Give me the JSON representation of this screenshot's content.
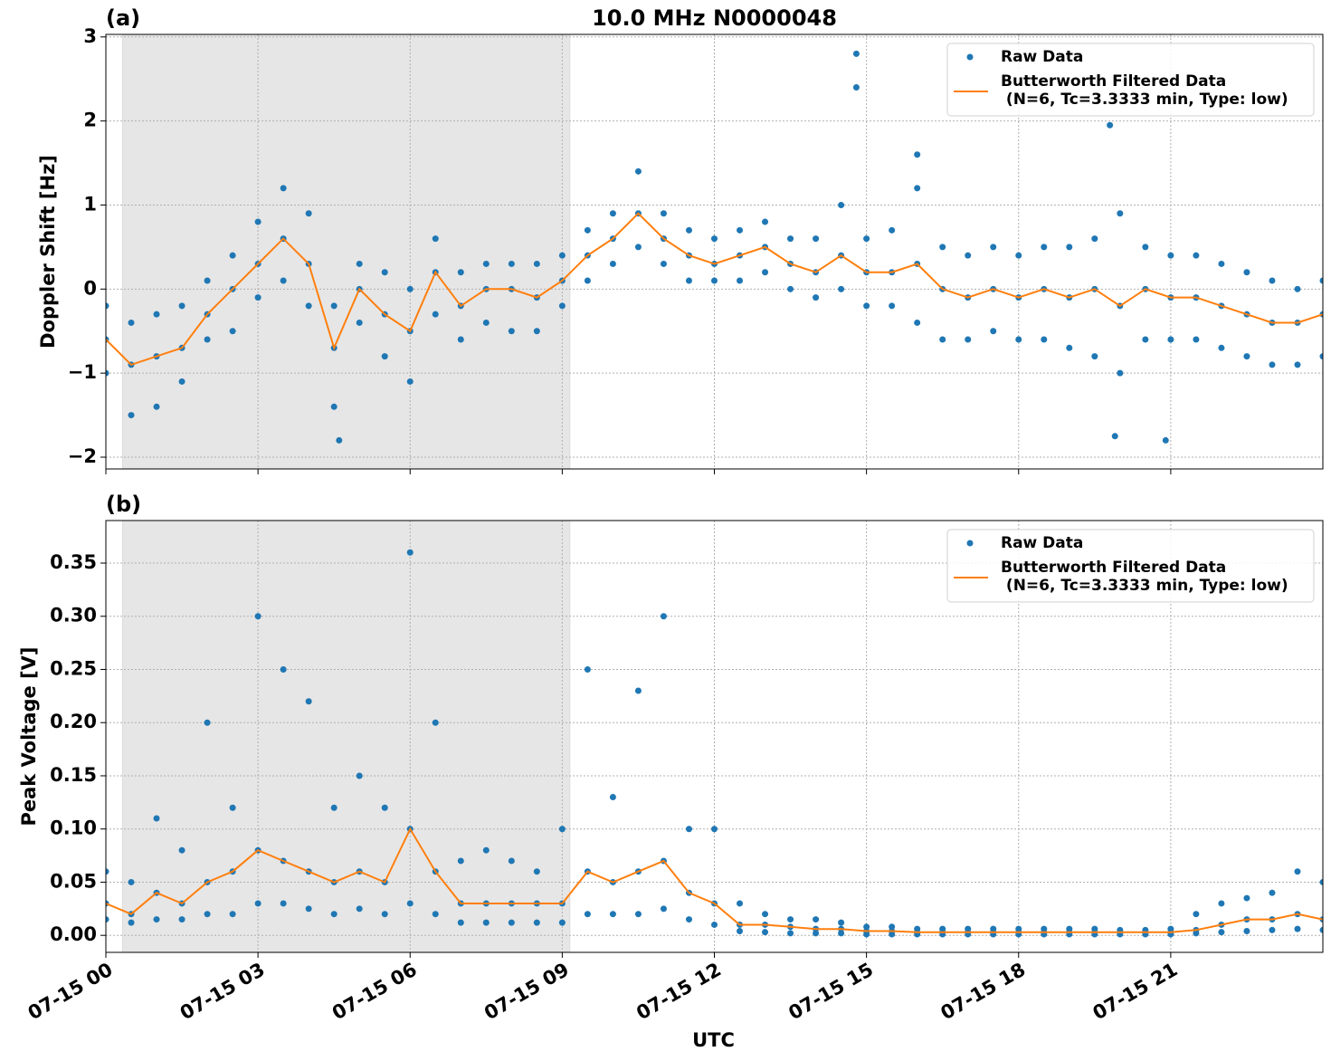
{
  "chart_data": [
    {
      "type": "scatter",
      "panel_label": "(a)",
      "title": "10.0 MHz N0000048",
      "ylabel": "Doppler Shift [Hz]",
      "xlim": [
        0,
        24
      ],
      "xticks": [
        0,
        3,
        6,
        9,
        12,
        15,
        18,
        21
      ],
      "ylim": [
        -2.14,
        3.03
      ],
      "yticks": [
        {
          "value": -2,
          "label": "−2"
        },
        {
          "value": -1,
          "label": "−1"
        },
        0,
        1,
        2,
        3
      ],
      "grid": true,
      "shaded_span": [
        0.33,
        9.15
      ],
      "legend": "upper right",
      "series": [
        {
          "name": "Raw Data",
          "color": "#1f77b4",
          "x": [
            0,
            0,
            0,
            0.5,
            0.5,
            0.5,
            1,
            1,
            1,
            1.5,
            1.5,
            1.5,
            2,
            2,
            2,
            2.5,
            2.5,
            2.5,
            3,
            3,
            3,
            3.5,
            3.5,
            3.5,
            4,
            4,
            4,
            4.5,
            4.5,
            4.5,
            5,
            5,
            5,
            5.5,
            5.5,
            5.5,
            6,
            6,
            6,
            6.5,
            6.5,
            6.5,
            7,
            7,
            7,
            7.5,
            7.5,
            7.5,
            8,
            8,
            8,
            8.5,
            8.5,
            8.5,
            9,
            9,
            9,
            9.5,
            9.5,
            9.5,
            10,
            10,
            10,
            10.5,
            10.5,
            10.5,
            11,
            11,
            11,
            11.5,
            11.5,
            11.5,
            12,
            12,
            12,
            12.5,
            12.5,
            12.5,
            13,
            13,
            13,
            13.5,
            13.5,
            13.5,
            14,
            14,
            14,
            14.5,
            14.5,
            14.5,
            15,
            15,
            15,
            15.5,
            15.5,
            15.5,
            16,
            16,
            16,
            16.5,
            16.5,
            16.5,
            17,
            17,
            17,
            17.5,
            17.5,
            17.5,
            18,
            18,
            18,
            18.5,
            18.5,
            18.5,
            19,
            19,
            19,
            19.5,
            19.5,
            19.5,
            20,
            20,
            20,
            20.5,
            20.5,
            20.5,
            21,
            21,
            21,
            21.5,
            21.5,
            21.5,
            22,
            22,
            22,
            22.5,
            22.5,
            22.5,
            23,
            23,
            23,
            23.5,
            23.5,
            23.5,
            24,
            24,
            24,
            14.8,
            14.8,
            19.8,
            4.6,
            19.9,
            16,
            20.9
          ],
          "values": [
            -0.2,
            -0.6,
            -1.0,
            -0.4,
            -0.9,
            -1.5,
            -0.3,
            -0.8,
            -1.4,
            -0.2,
            -0.7,
            -1.1,
            0.1,
            -0.3,
            -0.6,
            0.4,
            0.0,
            -0.5,
            0.8,
            0.3,
            -0.1,
            1.2,
            0.6,
            0.1,
            0.9,
            0.3,
            -0.2,
            -0.2,
            -0.7,
            -1.4,
            0.3,
            0.0,
            -0.4,
            0.2,
            -0.3,
            -0.8,
            0.0,
            -0.5,
            -1.1,
            0.6,
            0.2,
            -0.3,
            0.2,
            -0.2,
            -0.6,
            0.3,
            0.0,
            -0.4,
            0.3,
            0.0,
            -0.5,
            0.3,
            -0.1,
            -0.5,
            0.4,
            0.1,
            -0.2,
            0.7,
            0.4,
            0.1,
            0.9,
            0.6,
            0.3,
            1.4,
            0.9,
            0.5,
            0.9,
            0.6,
            0.3,
            0.7,
            0.4,
            0.1,
            0.6,
            0.3,
            0.1,
            0.7,
            0.4,
            0.1,
            0.8,
            0.5,
            0.2,
            0.6,
            0.3,
            0.0,
            0.6,
            0.2,
            -0.1,
            1.0,
            0.4,
            0.0,
            0.6,
            0.2,
            -0.2,
            0.7,
            0.2,
            -0.2,
            1.2,
            0.3,
            -0.4,
            0.5,
            0.0,
            -0.6,
            0.4,
            -0.1,
            -0.6,
            0.5,
            0.0,
            -0.5,
            0.4,
            -0.1,
            -0.6,
            0.5,
            0.0,
            -0.6,
            0.5,
            -0.1,
            -0.7,
            0.6,
            0.0,
            -0.8,
            0.9,
            -0.2,
            -1.0,
            0.5,
            0.0,
            -0.6,
            0.4,
            -0.1,
            -0.6,
            0.4,
            -0.1,
            -0.6,
            0.3,
            -0.2,
            -0.7,
            0.2,
            -0.3,
            -0.8,
            0.1,
            -0.4,
            -0.9,
            0.0,
            -0.4,
            -0.9,
            0.1,
            -0.3,
            -0.8,
            2.8,
            2.4,
            1.95,
            -1.8,
            -1.75,
            1.6,
            -1.8
          ]
        },
        {
          "name": "Butterworth Filtered Data\n(N=6, Tc=3.3333 min, Type: low)",
          "color": "#ff7f0e",
          "x": [
            0,
            0.5,
            1,
            1.5,
            2,
            2.5,
            3,
            3.5,
            4,
            4.5,
            5,
            5.5,
            6,
            6.5,
            7,
            7.5,
            8,
            8.5,
            9,
            9.5,
            10,
            10.5,
            11,
            11.5,
            12,
            12.5,
            13,
            13.5,
            14,
            14.5,
            15,
            15.5,
            16,
            16.5,
            17,
            17.5,
            18,
            18.5,
            19,
            19.5,
            20,
            20.5,
            21,
            21.5,
            22,
            22.5,
            23,
            23.5,
            24
          ],
          "values": [
            -0.6,
            -0.9,
            -0.8,
            -0.7,
            -0.3,
            0.0,
            0.3,
            0.6,
            0.3,
            -0.7,
            0.0,
            -0.3,
            -0.5,
            0.2,
            -0.2,
            0.0,
            0.0,
            -0.1,
            0.1,
            0.4,
            0.6,
            0.9,
            0.6,
            0.4,
            0.3,
            0.4,
            0.5,
            0.3,
            0.2,
            0.4,
            0.2,
            0.2,
            0.3,
            0.0,
            -0.1,
            0.0,
            -0.1,
            0.0,
            -0.1,
            0.0,
            -0.2,
            0.0,
            -0.1,
            -0.1,
            -0.2,
            -0.3,
            -0.4,
            -0.4,
            -0.3
          ]
        }
      ]
    },
    {
      "type": "scatter",
      "panel_label": "(b)",
      "ylabel": "Peak Voltage [V]",
      "xlabel": "UTC",
      "xlim": [
        0,
        24
      ],
      "xticks": [
        {
          "value": 0,
          "label": "07-15 00"
        },
        {
          "value": 3,
          "label": "07-15 03"
        },
        {
          "value": 6,
          "label": "07-15 06"
        },
        {
          "value": 9,
          "label": "07-15 09"
        },
        {
          "value": 12,
          "label": "07-15 12"
        },
        {
          "value": 15,
          "label": "07-15 15"
        },
        {
          "value": 18,
          "label": "07-15 18"
        },
        {
          "value": 21,
          "label": "07-15 21"
        }
      ],
      "ylim": [
        -0.016,
        0.39
      ],
      "yticks": [
        {
          "value": 0,
          "label": "0.00"
        },
        {
          "value": 0.05,
          "label": "0.05"
        },
        {
          "value": 0.1,
          "label": "0.10"
        },
        {
          "value": 0.15,
          "label": "0.15"
        },
        {
          "value": 0.2,
          "label": "0.20"
        },
        {
          "value": 0.25,
          "label": "0.25"
        },
        {
          "value": 0.3,
          "label": "0.30"
        },
        {
          "value": 0.35,
          "label": "0.35"
        }
      ],
      "grid": true,
      "shaded_span": [
        0.33,
        9.15
      ],
      "legend": "upper right",
      "series": [
        {
          "name": "Raw Data",
          "color": "#1f77b4",
          "x": [
            0,
            0,
            0,
            0.5,
            0.5,
            0.5,
            1,
            1,
            1,
            1.5,
            1.5,
            1.5,
            2,
            2,
            2,
            2.5,
            2.5,
            2.5,
            3,
            3,
            3,
            3.5,
            3.5,
            3.5,
            4,
            4,
            4,
            4.5,
            4.5,
            4.5,
            5,
            5,
            5,
            5.5,
            5.5,
            5.5,
            6,
            6,
            6,
            6.5,
            6.5,
            6.5,
            7,
            7,
            7,
            7.5,
            7.5,
            7.5,
            8,
            8,
            8,
            8.5,
            8.5,
            8.5,
            9,
            9,
            9,
            9.5,
            9.5,
            9.5,
            10,
            10,
            10,
            10.5,
            10.5,
            10.5,
            11,
            11,
            11,
            11.5,
            11.5,
            11.5,
            12,
            12,
            12,
            12.5,
            12.5,
            12.5,
            13,
            13,
            13,
            13.5,
            13.5,
            13.5,
            14,
            14,
            14,
            14.5,
            14.5,
            14.5,
            15,
            15,
            15,
            15.5,
            15.5,
            15.5,
            16,
            16,
            16,
            16.5,
            16.5,
            16.5,
            17,
            17,
            17,
            17.5,
            17.5,
            17.5,
            18,
            18,
            18,
            18.5,
            18.5,
            18.5,
            19,
            19,
            19,
            19.5,
            19.5,
            19.5,
            20,
            20,
            20,
            20.5,
            20.5,
            20.5,
            21,
            21,
            21,
            21.5,
            21.5,
            21.5,
            22,
            22,
            22,
            22.5,
            22.5,
            22.5,
            23,
            23,
            23,
            23.5,
            23.5,
            23.5,
            24,
            24,
            24
          ],
          "values": [
            0.06,
            0.03,
            0.015,
            0.05,
            0.02,
            0.012,
            0.11,
            0.04,
            0.015,
            0.08,
            0.03,
            0.015,
            0.2,
            0.05,
            0.02,
            0.12,
            0.06,
            0.02,
            0.3,
            0.08,
            0.03,
            0.25,
            0.07,
            0.03,
            0.22,
            0.06,
            0.025,
            0.12,
            0.05,
            0.02,
            0.15,
            0.06,
            0.025,
            0.12,
            0.05,
            0.02,
            0.36,
            0.1,
            0.03,
            0.2,
            0.06,
            0.02,
            0.07,
            0.03,
            0.012,
            0.08,
            0.03,
            0.012,
            0.07,
            0.03,
            0.012,
            0.06,
            0.03,
            0.012,
            0.1,
            0.03,
            0.012,
            0.25,
            0.06,
            0.02,
            0.13,
            0.05,
            0.02,
            0.23,
            0.06,
            0.02,
            0.3,
            0.07,
            0.025,
            0.1,
            0.04,
            0.015,
            0.1,
            0.03,
            0.01,
            0.03,
            0.01,
            0.004,
            0.02,
            0.01,
            0.003,
            0.015,
            0.008,
            0.002,
            0.015,
            0.006,
            0.002,
            0.012,
            0.006,
            0.002,
            0.008,
            0.004,
            0.001,
            0.008,
            0.004,
            0.001,
            0.006,
            0.003,
            0.001,
            0.006,
            0.003,
            0.001,
            0.006,
            0.003,
            0.001,
            0.006,
            0.003,
            0.001,
            0.006,
            0.003,
            0.001,
            0.006,
            0.003,
            0.001,
            0.006,
            0.003,
            0.001,
            0.006,
            0.003,
            0.001,
            0.005,
            0.003,
            0.001,
            0.005,
            0.003,
            0.001,
            0.006,
            0.003,
            0.001,
            0.02,
            0.005,
            0.002,
            0.03,
            0.01,
            0.003,
            0.035,
            0.015,
            0.004,
            0.04,
            0.015,
            0.005,
            0.06,
            0.02,
            0.006,
            0.05,
            0.015,
            0.005
          ]
        },
        {
          "name": "Butterworth Filtered Data\n(N=6, Tc=3.3333 min, Type: low)",
          "color": "#ff7f0e",
          "x": [
            0,
            0.5,
            1,
            1.5,
            2,
            2.5,
            3,
            3.5,
            4,
            4.5,
            5,
            5.5,
            6,
            6.5,
            7,
            7.5,
            8,
            8.5,
            9,
            9.5,
            10,
            10.5,
            11,
            11.5,
            12,
            12.5,
            13,
            13.5,
            14,
            14.5,
            15,
            15.5,
            16,
            16.5,
            17,
            17.5,
            18,
            18.5,
            19,
            19.5,
            20,
            20.5,
            21,
            21.5,
            22,
            22.5,
            23,
            23.5,
            24
          ],
          "values": [
            0.03,
            0.02,
            0.04,
            0.03,
            0.05,
            0.06,
            0.08,
            0.07,
            0.06,
            0.05,
            0.06,
            0.05,
            0.1,
            0.06,
            0.03,
            0.03,
            0.03,
            0.03,
            0.03,
            0.06,
            0.05,
            0.06,
            0.07,
            0.04,
            0.03,
            0.01,
            0.01,
            0.008,
            0.006,
            0.006,
            0.004,
            0.004,
            0.003,
            0.003,
            0.003,
            0.003,
            0.003,
            0.003,
            0.003,
            0.003,
            0.003,
            0.003,
            0.003,
            0.005,
            0.01,
            0.015,
            0.015,
            0.02,
            0.015
          ]
        }
      ]
    }
  ]
}
